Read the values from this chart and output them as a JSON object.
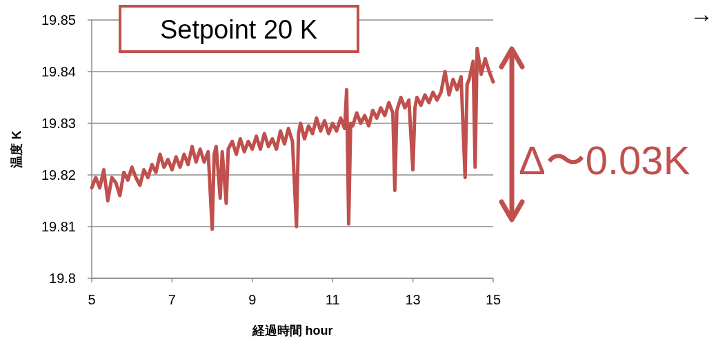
{
  "chart_data": {
    "type": "line",
    "xlabel": "経過時間 hour",
    "ylabel": "温度 K",
    "xlim": [
      5,
      15
    ],
    "ylim": [
      19.8,
      19.85
    ],
    "xticks": [
      5,
      7,
      9,
      11,
      13,
      15
    ],
    "yticks": [
      19.8,
      19.81,
      19.82,
      19.83,
      19.84,
      19.85
    ],
    "grid": "y",
    "line_style": "solid",
    "x": [
      5.0,
      5.1,
      5.2,
      5.3,
      5.4,
      5.5,
      5.6,
      5.7,
      5.8,
      5.9,
      6.0,
      6.1,
      6.2,
      6.3,
      6.4,
      6.5,
      6.6,
      6.7,
      6.8,
      6.9,
      7.0,
      7.1,
      7.2,
      7.3,
      7.4,
      7.5,
      7.6,
      7.7,
      7.8,
      7.9,
      8.0,
      8.05,
      8.1,
      8.2,
      8.25,
      8.35,
      8.4,
      8.5,
      8.6,
      8.7,
      8.8,
      8.9,
      9.0,
      9.1,
      9.2,
      9.3,
      9.4,
      9.5,
      9.6,
      9.7,
      9.8,
      9.9,
      10.0,
      10.1,
      10.15,
      10.2,
      10.3,
      10.4,
      10.5,
      10.6,
      10.7,
      10.8,
      10.9,
      11.0,
      11.1,
      11.2,
      11.3,
      11.35,
      11.4,
      11.45,
      11.5,
      11.6,
      11.7,
      11.8,
      11.9,
      12.0,
      12.1,
      12.2,
      12.3,
      12.4,
      12.5,
      12.55,
      12.6,
      12.7,
      12.8,
      12.9,
      13.0,
      13.05,
      13.1,
      13.2,
      13.3,
      13.4,
      13.5,
      13.6,
      13.7,
      13.8,
      13.9,
      14.0,
      14.1,
      14.2,
      14.3,
      14.35,
      14.4,
      14.5,
      14.55,
      14.6,
      14.7,
      14.8,
      14.9,
      15.0
    ],
    "series": [
      {
        "color": "#c0504d",
        "values": [
          19.8175,
          19.8195,
          19.8175,
          19.821,
          19.815,
          19.8195,
          19.8185,
          19.816,
          19.8205,
          19.819,
          19.8215,
          19.8195,
          19.818,
          19.821,
          19.8195,
          19.822,
          19.8205,
          19.824,
          19.8215,
          19.823,
          19.821,
          19.8235,
          19.8215,
          19.824,
          19.822,
          19.8255,
          19.8225,
          19.825,
          19.8225,
          19.8245,
          19.8095,
          19.824,
          19.8255,
          19.8155,
          19.8245,
          19.8145,
          19.825,
          19.8265,
          19.824,
          19.827,
          19.8245,
          19.8265,
          19.825,
          19.8275,
          19.825,
          19.828,
          19.8255,
          19.827,
          19.825,
          19.8285,
          19.826,
          19.829,
          19.8265,
          19.81,
          19.828,
          19.83,
          19.827,
          19.8295,
          19.828,
          19.831,
          19.8285,
          19.8305,
          19.828,
          19.83,
          19.8285,
          19.831,
          19.829,
          19.8365,
          19.8105,
          19.83,
          19.8295,
          19.832,
          19.83,
          19.8315,
          19.8295,
          19.8325,
          19.831,
          19.833,
          19.8315,
          19.834,
          19.832,
          19.817,
          19.8325,
          19.835,
          19.833,
          19.8345,
          19.821,
          19.833,
          19.835,
          19.8335,
          19.8355,
          19.834,
          19.836,
          19.8345,
          19.836,
          19.84,
          19.8355,
          19.8385,
          19.8365,
          19.839,
          19.8195,
          19.8375,
          19.8385,
          19.842,
          19.8215,
          19.8445,
          19.8395,
          19.8425,
          19.84,
          19.838
        ]
      }
    ],
    "annotations": [
      "Setpoint  20 K",
      "Δ〜0.03K",
      "→"
    ]
  }
}
